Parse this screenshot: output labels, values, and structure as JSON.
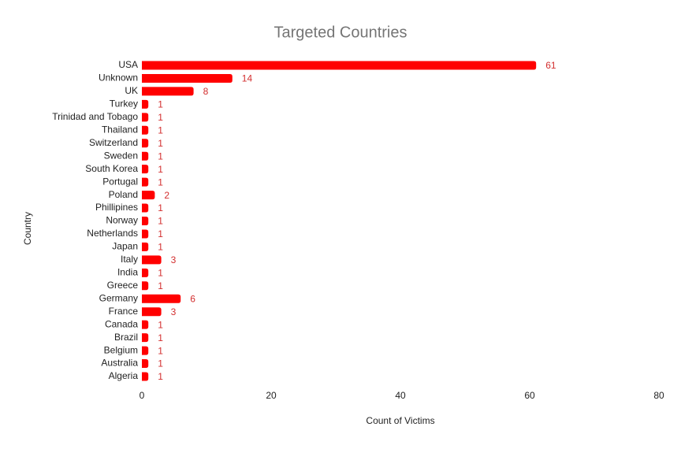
{
  "chart_data": {
    "type": "bar",
    "orientation": "horizontal",
    "title": "Targeted Countries",
    "x_label": "Count of Victims",
    "y_label": "Country",
    "categories": [
      "USA",
      "Unknown",
      "UK",
      "Turkey",
      "Trinidad and Tobago",
      "Thailand",
      "Switzerland",
      "Sweden",
      "South Korea",
      "Portugal",
      "Poland",
      "Phillipines",
      "Norway",
      "Netherlands",
      "Japan",
      "Italy",
      "India",
      "Greece",
      "Germany",
      "France",
      "Canada",
      "Brazil",
      "Belgium",
      "Australia",
      "Algeria"
    ],
    "values": [
      61,
      14,
      8,
      1,
      1,
      1,
      1,
      1,
      1,
      1,
      2,
      1,
      1,
      1,
      1,
      3,
      1,
      1,
      6,
      3,
      1,
      1,
      1,
      1,
      1
    ],
    "color": "#ff0000",
    "data_labels": true,
    "xlim": [
      0,
      80
    ],
    "xticks": [
      0,
      20,
      40,
      60,
      80
    ],
    "grid": false
  }
}
